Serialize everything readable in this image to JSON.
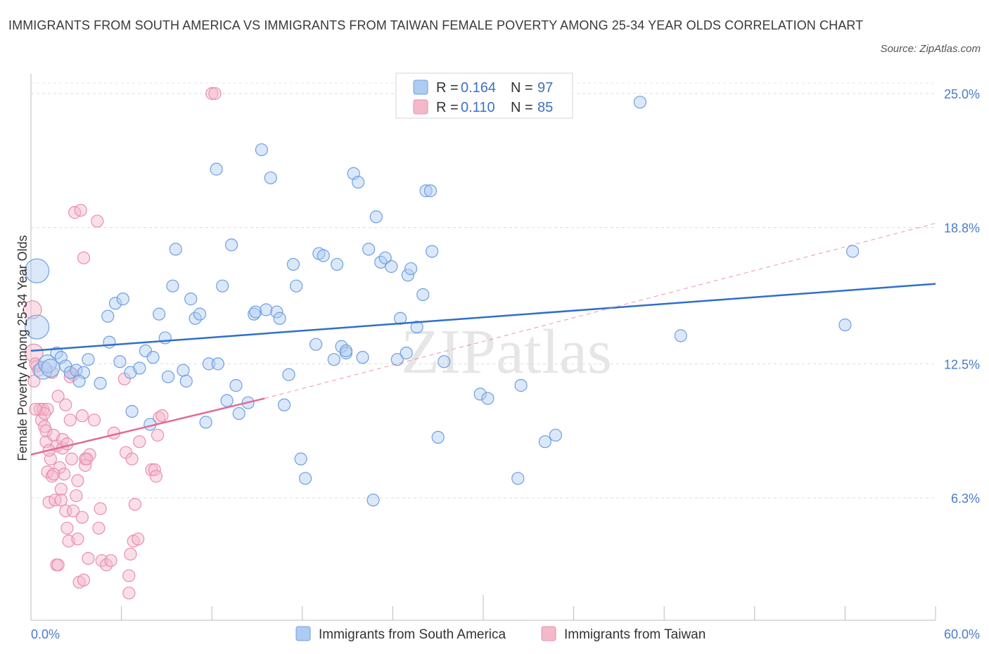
{
  "chart_data": {
    "type": "scatter",
    "title": "IMMIGRANTS FROM SOUTH AMERICA VS IMMIGRANTS FROM TAIWAN FEMALE POVERTY AMONG 25-34 YEAR OLDS CORRELATION CHART",
    "source": "Source: ZipAtlas.com",
    "ylabel": "Female Poverty Among 25-34 Year Olds",
    "xlabel": "",
    "xlim": [
      0,
      60
    ],
    "ylim": [
      0,
      26
    ],
    "x_tick_labels": [
      "0.0%",
      "60.0%"
    ],
    "y_ticks": [
      {
        "value": 25.0,
        "label": "25.0%"
      },
      {
        "value": 18.8,
        "label": "18.8%"
      },
      {
        "value": 12.5,
        "label": "12.5%"
      },
      {
        "value": 6.3,
        "label": "6.3%"
      }
    ],
    "grid": true,
    "watermark": "ZIPatlas",
    "legend": {
      "placement": "top-center",
      "rows": [
        {
          "r_label": "R =",
          "r_value": "0.164",
          "n_label": "N =",
          "n_value": "97"
        },
        {
          "r_label": "R =",
          "r_value": "0.110",
          "n_label": "N =",
          "n_value": "85"
        }
      ]
    },
    "series": [
      {
        "name": "Immigrants from South America",
        "color": "#6f9fe0",
        "fill": "#aecbf2",
        "trend_color": "#2f6fcc",
        "trend": {
          "x0": 0,
          "y0": 13.1,
          "x1": 60,
          "y1": 16.2
        },
        "points": [
          [
            0.4,
            16.8,
            2
          ],
          [
            0.4,
            14.2,
            2
          ],
          [
            0.8,
            12.2,
            1.5
          ],
          [
            1.1,
            12.5,
            1.5
          ],
          [
            1.3,
            12.3,
            1.5
          ],
          [
            1.7,
            13.0,
            1
          ],
          [
            2.0,
            12.8,
            1
          ],
          [
            2.3,
            12.4,
            1
          ],
          [
            2.6,
            12.1,
            1
          ],
          [
            3.0,
            12.2,
            1
          ],
          [
            3.5,
            12.1,
            1
          ],
          [
            3.8,
            12.7,
            1
          ],
          [
            3.2,
            11.7,
            1
          ],
          [
            4.6,
            11.6,
            1
          ],
          [
            5.2,
            13.5,
            1
          ],
          [
            5.1,
            14.7,
            1
          ],
          [
            5.6,
            15.3,
            1
          ],
          [
            6.1,
            15.5,
            1
          ],
          [
            5.9,
            12.6,
            1
          ],
          [
            6.6,
            12.1,
            1
          ],
          [
            6.7,
            10.3,
            1
          ],
          [
            7.2,
            12.3,
            1
          ],
          [
            7.6,
            13.1,
            1
          ],
          [
            8.1,
            12.8,
            1
          ],
          [
            7.9,
            9.7,
            1
          ],
          [
            8.5,
            14.8,
            1
          ],
          [
            8.9,
            13.7,
            1
          ],
          [
            9.1,
            11.9,
            1
          ],
          [
            9.4,
            16.1,
            1
          ],
          [
            9.6,
            17.8,
            1
          ],
          [
            10.1,
            12.2,
            1
          ],
          [
            10.3,
            11.7,
            1
          ],
          [
            10.6,
            15.5,
            1
          ],
          [
            10.9,
            14.6,
            1
          ],
          [
            11.2,
            14.8,
            1
          ],
          [
            11.6,
            9.8,
            1
          ],
          [
            11.8,
            12.5,
            1
          ],
          [
            12.4,
            12.5,
            1
          ],
          [
            12.3,
            21.5,
            1
          ],
          [
            12.7,
            16.1,
            1
          ],
          [
            13.0,
            10.8,
            1
          ],
          [
            13.3,
            18.0,
            1
          ],
          [
            13.6,
            11.5,
            1
          ],
          [
            13.8,
            10.2,
            1
          ],
          [
            14.4,
            10.7,
            1
          ],
          [
            14.8,
            14.8,
            1
          ],
          [
            14.9,
            14.9,
            1
          ],
          [
            15.3,
            22.4,
            1
          ],
          [
            15.6,
            15.0,
            1
          ],
          [
            15.9,
            21.1,
            1
          ],
          [
            16.3,
            14.9,
            1
          ],
          [
            16.5,
            14.6,
            1
          ],
          [
            16.8,
            10.6,
            1
          ],
          [
            17.1,
            12.0,
            1
          ],
          [
            17.4,
            17.1,
            1
          ],
          [
            17.6,
            16.1,
            1
          ],
          [
            17.9,
            8.1,
            1
          ],
          [
            18.2,
            7.2,
            1
          ],
          [
            18.9,
            13.4,
            1
          ],
          [
            19.1,
            17.6,
            1
          ],
          [
            19.4,
            17.5,
            1
          ],
          [
            20.1,
            12.7,
            1
          ],
          [
            20.3,
            17.1,
            1
          ],
          [
            20.6,
            13.3,
            1
          ],
          [
            20.9,
            13.0,
            1
          ],
          [
            21.4,
            21.3,
            1
          ],
          [
            21.7,
            20.9,
            1
          ],
          [
            22.0,
            12.8,
            1
          ],
          [
            22.4,
            17.8,
            1
          ],
          [
            22.7,
            6.2,
            1
          ],
          [
            22.9,
            19.3,
            1
          ],
          [
            23.2,
            17.2,
            1
          ],
          [
            23.5,
            17.4,
            1
          ],
          [
            23.9,
            17.0,
            1
          ],
          [
            24.3,
            12.7,
            1
          ],
          [
            24.5,
            14.6,
            1
          ],
          [
            25.0,
            16.6,
            1
          ],
          [
            25.2,
            16.9,
            1
          ],
          [
            25.6,
            14.2,
            1
          ],
          [
            26.0,
            15.7,
            1
          ],
          [
            26.2,
            20.5,
            1
          ],
          [
            26.6,
            17.7,
            1
          ],
          [
            27.0,
            9.1,
            1
          ],
          [
            27.4,
            12.6,
            1
          ],
          [
            29.8,
            11.1,
            1
          ],
          [
            30.3,
            10.9,
            1
          ],
          [
            32.3,
            7.2,
            1
          ],
          [
            32.5,
            11.5,
            1
          ],
          [
            34.1,
            8.9,
            1
          ],
          [
            34.8,
            9.2,
            1
          ],
          [
            40.4,
            24.6,
            1
          ],
          [
            43.1,
            13.8,
            1
          ],
          [
            54.0,
            14.3,
            1
          ],
          [
            54.5,
            17.7,
            1
          ],
          [
            26.5,
            20.5,
            1
          ],
          [
            20.9,
            13.1,
            1
          ],
          [
            24.9,
            13.0,
            1
          ]
        ]
      },
      {
        "name": "Immigrants from Taiwan",
        "color": "#e88fab",
        "fill": "#f5b8cb",
        "trend_color": "#e06b95",
        "trend": {
          "x0": 0,
          "y0": 8.3,
          "x1": 15.5,
          "y1": 10.9
        },
        "trend_dashed": {
          "x0": 15.5,
          "y0": 10.9,
          "x1": 60,
          "y1": 19.0
        },
        "points": [
          [
            0.1,
            15.0,
            1.5
          ],
          [
            0.2,
            13.0,
            1.5
          ],
          [
            0.2,
            11.7,
            1
          ],
          [
            0.4,
            12.4,
            1
          ],
          [
            0.6,
            10.4,
            1
          ],
          [
            0.7,
            9.9,
            1
          ],
          [
            0.8,
            10.4,
            1
          ],
          [
            0.9,
            9.6,
            1
          ],
          [
            1.0,
            8.9,
            1
          ],
          [
            1.0,
            9.4,
            1
          ],
          [
            1.1,
            7.5,
            1
          ],
          [
            1.2,
            6.1,
            1
          ],
          [
            1.3,
            8.1,
            1
          ],
          [
            1.4,
            7.3,
            1
          ],
          [
            1.5,
            9.2,
            1
          ],
          [
            1.6,
            6.2,
            1
          ],
          [
            1.7,
            8.7,
            1
          ],
          [
            1.7,
            3.2,
            1
          ],
          [
            1.8,
            11.0,
            1
          ],
          [
            1.9,
            7.7,
            1
          ],
          [
            2.0,
            6.7,
            1
          ],
          [
            2.1,
            8.6,
            1
          ],
          [
            2.1,
            9.0,
            1
          ],
          [
            2.2,
            7.4,
            1
          ],
          [
            2.3,
            5.7,
            1
          ],
          [
            2.3,
            10.6,
            1
          ],
          [
            2.4,
            4.9,
            1
          ],
          [
            2.5,
            4.3,
            1
          ],
          [
            2.6,
            9.9,
            1
          ],
          [
            2.7,
            8.1,
            1
          ],
          [
            2.8,
            12.0,
            1
          ],
          [
            2.8,
            5.7,
            1
          ],
          [
            2.9,
            19.5,
            1
          ],
          [
            3.0,
            6.4,
            1
          ],
          [
            3.1,
            7.1,
            1
          ],
          [
            3.1,
            4.4,
            1
          ],
          [
            3.2,
            2.4,
            1
          ],
          [
            3.3,
            19.6,
            1
          ],
          [
            3.4,
            10.1,
            1
          ],
          [
            3.4,
            5.4,
            1
          ],
          [
            3.5,
            2.5,
            1
          ],
          [
            3.5,
            17.4,
            1
          ],
          [
            3.6,
            8.1,
            1
          ],
          [
            3.6,
            7.8,
            1
          ],
          [
            3.8,
            3.5,
            1
          ],
          [
            3.9,
            8.3,
            1
          ],
          [
            4.2,
            9.9,
            1
          ],
          [
            4.4,
            19.1,
            1
          ],
          [
            4.5,
            4.9,
            1
          ],
          [
            4.6,
            5.8,
            1
          ],
          [
            4.7,
            3.4,
            1
          ],
          [
            5.0,
            3.2,
            1
          ],
          [
            5.3,
            3.4,
            1
          ],
          [
            5.5,
            9.3,
            1
          ],
          [
            6.2,
            11.8,
            1
          ],
          [
            6.3,
            8.4,
            1
          ],
          [
            6.5,
            2.7,
            1
          ],
          [
            6.5,
            1.9,
            1
          ],
          [
            6.6,
            3.7,
            1
          ],
          [
            6.7,
            8.1,
            1
          ],
          [
            6.8,
            4.3,
            1
          ],
          [
            6.9,
            6.0,
            1
          ],
          [
            7.1,
            4.4,
            1
          ],
          [
            7.2,
            8.9,
            1
          ],
          [
            8.0,
            7.6,
            1
          ],
          [
            8.2,
            7.6,
            1
          ],
          [
            8.3,
            7.3,
            1
          ],
          [
            8.5,
            10.0,
            1
          ],
          [
            8.7,
            10.1,
            1
          ],
          [
            8.4,
            9.2,
            1
          ],
          [
            12.0,
            25.0,
            1
          ],
          [
            12.2,
            25.0,
            1
          ],
          [
            0.3,
            12.5,
            1
          ],
          [
            0.5,
            12.2,
            1
          ],
          [
            1.2,
            8.5,
            1
          ],
          [
            1.5,
            7.4,
            1
          ],
          [
            2.0,
            6.2,
            1
          ],
          [
            2.4,
            8.8,
            1
          ],
          [
            3.7,
            8.1,
            1
          ],
          [
            1.1,
            10.4,
            1
          ],
          [
            0.9,
            10.2,
            1
          ],
          [
            2.6,
            11.9,
            1
          ],
          [
            1.4,
            12.1,
            1
          ],
          [
            0.3,
            10.4,
            1
          ],
          [
            1.8,
            3.2,
            1
          ]
        ]
      }
    ]
  },
  "bottom_legend": {
    "items": [
      {
        "label": "Immigrants from South America"
      },
      {
        "label": "Immigrants from Taiwan"
      }
    ]
  }
}
